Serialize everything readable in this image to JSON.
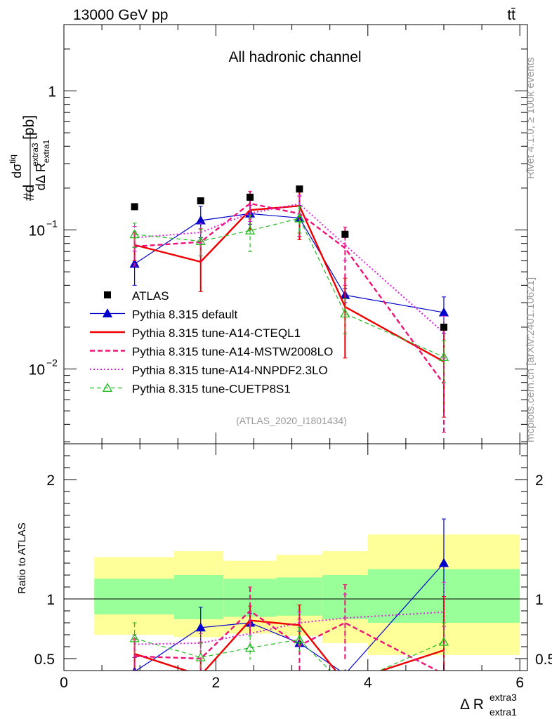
{
  "header": {
    "energy_label": "13000 GeV pp",
    "process_label": "tt̄",
    "channel_label": "All hadronic channel",
    "analysis_id": "(ATLAS_2020_I1801434)",
    "rivet_label": "Rivet 4.1.0, ≥ 100k events",
    "mcplots_label": "mcplots.cern.ch [arXiv:2401.10621]"
  },
  "axes": {
    "ylabel_main": "#d dσ^tiq / dΔ R_extra1^extra3 [pb]",
    "ylabel_main_parts": {
      "prefix": "#d",
      "numer": "dσ",
      "numer_sup": "tiq",
      "denom": "dΔ R",
      "denom_sub": "extra1",
      "denom_sup": "extra3",
      "unit": "[pb]"
    },
    "ylabel_ratio": "Ratio to ATLAS",
    "xlabel": "Δ R",
    "xlabel_sup": "extra3",
    "xlabel_sub": "extra1",
    "main_yticks": [
      "10",
      "10",
      "1"
    ],
    "main_ytick_exps": [
      "−2",
      "−1",
      ""
    ],
    "ratio_yticks": [
      "0.5",
      "1",
      "2"
    ],
    "xticks": [
      "0",
      "2",
      "4",
      "6"
    ]
  },
  "chart_data": {
    "type": "line",
    "x_range": [
      0,
      6.1
    ],
    "main_y_range_log": [
      0.0029,
      3.0
    ],
    "ratio_y_range": [
      0.4,
      2.3
    ],
    "x": [
      0.93,
      1.8,
      2.45,
      3.1,
      3.7,
      5.0
    ],
    "bin_edges": [
      0.4,
      1.45,
      2.1,
      2.8,
      3.4,
      4.0,
      6.0
    ],
    "data": {
      "name": "ATLAS",
      "values": [
        0.147,
        0.162,
        0.172,
        0.197,
        0.093,
        0.02
      ]
    },
    "uncertainty_bands": {
      "inner": [
        [
          0.87,
          1.17
        ],
        [
          0.83,
          1.2
        ],
        [
          0.85,
          1.17
        ],
        [
          0.86,
          1.18
        ],
        [
          0.83,
          1.2
        ],
        [
          0.8,
          1.25
        ]
      ],
      "outer": [
        [
          0.7,
          1.35
        ],
        [
          0.68,
          1.4
        ],
        [
          0.71,
          1.32
        ],
        [
          0.69,
          1.37
        ],
        [
          0.63,
          1.4
        ],
        [
          0.53,
          1.54
        ]
      ]
    },
    "series": [
      {
        "name": "Pythia 8.315 default",
        "color": "#0000cc",
        "dash": "",
        "width": 1.2,
        "marker": "triangle-filled",
        "values": [
          0.057,
          0.117,
          0.131,
          0.122,
          0.034,
          0.0255
        ],
        "ratio": [
          0.39,
          0.76,
          0.8,
          0.63,
          0.37,
          1.3
        ],
        "err_lo": [
          0.04,
          0.088,
          0.11,
          0.09,
          0.03,
          0.018
        ],
        "err_hi": [
          0.075,
          0.148,
          0.15,
          0.15,
          0.038,
          0.033
        ],
        "ratio_err": [
          0.12,
          0.17,
          0.08,
          0.1,
          0.03,
          0.37
        ]
      },
      {
        "name": "Pythia 8.315 tune-A14-CTEQL1",
        "color": "#ee0000",
        "dash": "",
        "width": 2.4,
        "marker": "none",
        "values": [
          0.078,
          0.059,
          0.139,
          0.149,
          0.028,
          0.0113
        ],
        "ratio": [
          0.54,
          0.36,
          0.82,
          0.78,
          0.3,
          0.57
        ],
        "err_lo": [
          0.06,
          0.036,
          0.1,
          0.085,
          0.012,
          0.0045
        ],
        "err_hi": [
          0.095,
          0.082,
          0.18,
          0.2,
          0.045,
          0.019
        ],
        "ratio_err": [
          0.12,
          0.14,
          0.12,
          0.17,
          0.1,
          0.45
        ]
      },
      {
        "name": "Pythia 8.315 tune-A14-MSTW2008LO",
        "color": "#ee1177",
        "dash": "7,4",
        "width": 2.4,
        "marker": "none",
        "values": [
          0.076,
          0.082,
          0.155,
          0.131,
          0.074,
          0.0078
        ],
        "ratio": [
          0.52,
          0.5,
          0.9,
          0.61,
          0.8,
          0.37
        ],
        "err_lo": [
          0.055,
          0.06,
          0.12,
          0.09,
          0.04,
          0.0035
        ],
        "err_hi": [
          0.097,
          0.102,
          0.19,
          0.175,
          0.105,
          0.012
        ],
        "ratio_err": [
          0.15,
          0.14,
          0.2,
          0.22,
          0.32,
          0.4
        ]
      },
      {
        "name": "Pythia 8.315 tune-A14-NNPDF2.3LO",
        "color": "#dd22dd",
        "dash": "2,3",
        "width": 2.0,
        "marker": "none",
        "values": [
          0.088,
          0.096,
          0.132,
          0.154,
          0.078,
          0.0182
        ],
        "ratio": [
          0.62,
          0.63,
          0.71,
          0.8,
          0.84,
          0.89
        ],
        "err_lo": [
          0.07,
          0.08,
          0.115,
          0.13,
          0.06,
          0.012
        ],
        "err_hi": [
          0.106,
          0.112,
          0.15,
          0.178,
          0.096,
          0.024
        ],
        "ratio_err": [
          0.08,
          0.08,
          0.08,
          0.09,
          0.2,
          0.25
        ]
      },
      {
        "name": "Pythia 8.315 tune-CUETP8S1",
        "color": "#22bb22",
        "dash": "6,4",
        "width": 1.2,
        "marker": "triangle-open",
        "values": [
          0.093,
          0.083,
          0.099,
          0.121,
          0.025,
          0.0122
        ],
        "ratio": [
          0.67,
          0.51,
          0.59,
          0.66,
          0.27,
          0.64
        ],
        "err_lo": [
          0.075,
          0.065,
          0.07,
          0.095,
          0.018,
          0.008
        ],
        "err_hi": [
          0.112,
          0.101,
          0.128,
          0.148,
          0.032,
          0.016
        ],
        "ratio_err": [
          0.13,
          0.12,
          0.1,
          0.1,
          0.06,
          0.16
        ]
      }
    ]
  }
}
